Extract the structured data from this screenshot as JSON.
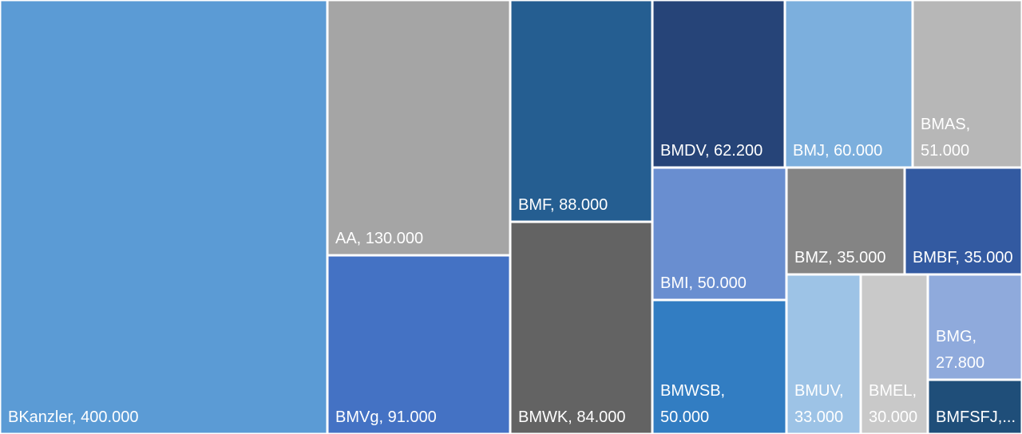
{
  "chart_data": {
    "type": "treemap",
    "title": "",
    "items": [
      {
        "name": "BKanzler",
        "value": 400000,
        "label": [
          "BKanzler, 400.000"
        ],
        "color": "#5B9BD5"
      },
      {
        "name": "AA",
        "value": 130000,
        "label": [
          "AA, 130.000"
        ],
        "color": "#A5A5A5"
      },
      {
        "name": "BMVg",
        "value": 91000,
        "label": [
          "BMVg, 91.000"
        ],
        "color": "#4472C4"
      },
      {
        "name": "BMF",
        "value": 88000,
        "label": [
          "BMF, 88.000"
        ],
        "color": "#255E91"
      },
      {
        "name": "BMWK",
        "value": 84000,
        "label": [
          "BMWK, 84.000"
        ],
        "color": "#636363"
      },
      {
        "name": "BMDV",
        "value": 62200,
        "label": [
          "BMDV, 62.200"
        ],
        "color": "#264478"
      },
      {
        "name": "BMJ",
        "value": 60000,
        "label": [
          "BMJ, 60.000"
        ],
        "color": "#7CAFDD"
      },
      {
        "name": "BMAS",
        "value": 51000,
        "label": [
          "BMAS,",
          "51.000"
        ],
        "color": "#B7B7B7"
      },
      {
        "name": "BMI",
        "value": 50000,
        "label": [
          "BMI, 50.000"
        ],
        "color": "#698ED0"
      },
      {
        "name": "BMWSB",
        "value": 50000,
        "label": [
          "BMWSB,",
          "50.000"
        ],
        "color": "#327DC2"
      },
      {
        "name": "BMZ",
        "value": 35000,
        "label": [
          "BMZ, 35.000"
        ],
        "color": "#848484"
      },
      {
        "name": "BMBF",
        "value": 35000,
        "label": [
          "BMBF, 35.000"
        ],
        "color": "#335AA1"
      },
      {
        "name": "BMUV",
        "value": 33000,
        "label": [
          "BMUV,",
          "33.000"
        ],
        "color": "#9DC3E6"
      },
      {
        "name": "BMEL",
        "value": 30000,
        "label": [
          "BMEL,",
          "30.000"
        ],
        "color": "#C9C9C9"
      },
      {
        "name": "BMG",
        "value": 27800,
        "label": [
          "BMG,",
          "27.800"
        ],
        "color": "#8FAADC"
      },
      {
        "name": "BMFSFJ",
        "value": 25000,
        "label": [
          "BMFSFJ,..."
        ],
        "color": "#1F4E79"
      }
    ]
  }
}
